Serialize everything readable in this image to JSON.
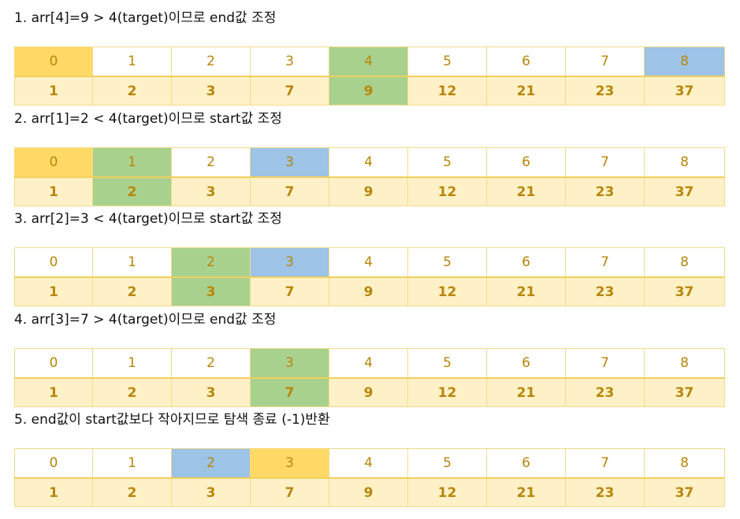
{
  "indices": [
    "0",
    "1",
    "2",
    "3",
    "4",
    "5",
    "6",
    "7",
    "8"
  ],
  "values": [
    "1",
    "2",
    "3",
    "7",
    "9",
    "12",
    "21",
    "23",
    "37"
  ],
  "colors": {
    "start": "#ffd966",
    "mid": "#a9d18e",
    "end": "#9dc3e6",
    "value_bg": "#fff1c7",
    "text": "#b8860b"
  },
  "steps": [
    {
      "caption": "1. arr[4]=9 > 4(target)이므로 end값 조정",
      "start": 0,
      "mid": 4,
      "end": 8
    },
    {
      "caption": "2. arr[1]=2 < 4(target)이므로 start값 조정",
      "start": 0,
      "mid": 1,
      "end": 3
    },
    {
      "caption": "3. arr[2]=3 < 4(target)이므로 start값 조정",
      "start": 2,
      "mid": 2,
      "end": 3
    },
    {
      "caption": "4. arr[3]=7 > 4(target)이므로 end값 조정",
      "start": 3,
      "mid": 3,
      "end": null
    },
    {
      "caption": "5. end값이 start값보다 작아지므로 탐색 종료 (-1)반환",
      "start": 3,
      "mid": null,
      "end": 2
    }
  ]
}
